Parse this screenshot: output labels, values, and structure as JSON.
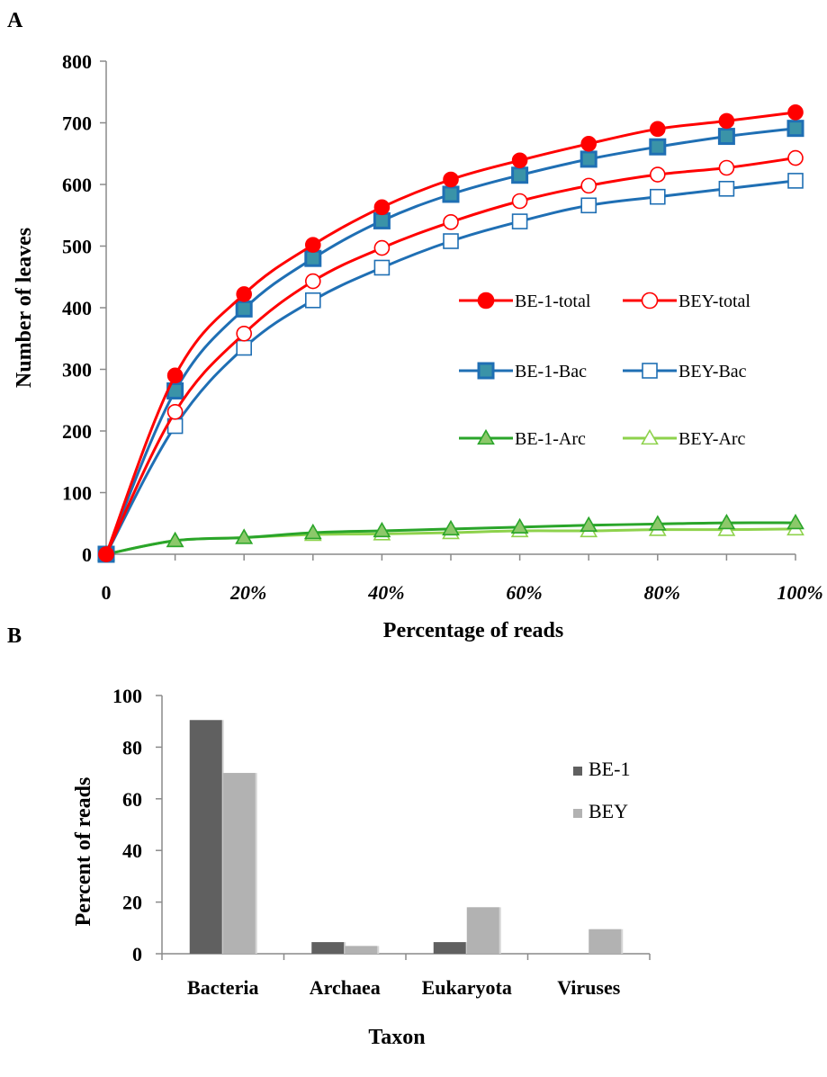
{
  "panels": {
    "a_letter": "A",
    "b_letter": "B"
  },
  "chart_data": [
    {
      "type": "line",
      "title": "",
      "xlabel": "Percentage of reads",
      "ylabel": "Number of leaves",
      "x": [
        0,
        10,
        20,
        30,
        40,
        50,
        60,
        70,
        80,
        90,
        100
      ],
      "xticks": [
        {
          "value": 0,
          "label": "0"
        },
        {
          "value": 20,
          "label": "20%"
        },
        {
          "value": 40,
          "label": "40%"
        },
        {
          "value": 60,
          "label": "60%"
        },
        {
          "value": 80,
          "label": "80%"
        },
        {
          "value": 100,
          "label": "100%"
        }
      ],
      "xlim": [
        0,
        100
      ],
      "ylim": [
        0,
        800
      ],
      "yticks": [
        0,
        100,
        200,
        300,
        400,
        500,
        600,
        700,
        800
      ],
      "grid": false,
      "legend_position": "right-middle",
      "series": [
        {
          "name": "BE-1-total",
          "color": "#ff0000",
          "marker": "circle",
          "filled": true,
          "values": [
            0,
            290,
            422,
            502,
            563,
            608,
            639,
            666,
            690,
            703,
            717
          ]
        },
        {
          "name": "BEY-total",
          "color": "#ff0000",
          "marker": "circle",
          "filled": false,
          "values": [
            0,
            231,
            358,
            443,
            497,
            539,
            573,
            598,
            616,
            627,
            643
          ]
        },
        {
          "name": "BE-1-Bac",
          "color": "#1f6fb4",
          "marker": "square",
          "filled": true,
          "fill": "#3a93a8",
          "values": [
            0,
            265,
            398,
            480,
            541,
            584,
            615,
            641,
            661,
            678,
            691
          ]
        },
        {
          "name": "BEY-Bac",
          "color": "#1f6fb4",
          "marker": "square",
          "filled": false,
          "values": [
            0,
            208,
            335,
            412,
            465,
            508,
            540,
            566,
            580,
            593,
            606
          ]
        },
        {
          "name": "BE-1-Arc",
          "color": "#2aa52a",
          "marker": "triangle",
          "filled": true,
          "fill": "#8cc86a",
          "values": [
            0,
            22,
            27,
            35,
            38,
            41,
            44,
            47,
            49,
            51,
            51
          ]
        },
        {
          "name": "BEY-Arc",
          "color": "#8ed24c",
          "marker": "triangle",
          "filled": false,
          "values": [
            0,
            22,
            27,
            32,
            33,
            35,
            38,
            38,
            40,
            40,
            41
          ]
        }
      ]
    },
    {
      "type": "bar",
      "title": "",
      "xlabel": "Taxon",
      "ylabel": "Percent of reads",
      "categories": [
        "Bacteria",
        "Archaea",
        "Eukaryota",
        "Viruses"
      ],
      "ylim": [
        0,
        100
      ],
      "yticks": [
        0,
        20,
        40,
        60,
        80,
        100
      ],
      "grid": false,
      "legend_position": "right-top",
      "series": [
        {
          "name": "BE-1",
          "color": "#606060",
          "values": [
            90.5,
            4.5,
            4.5,
            0
          ]
        },
        {
          "name": "BEY",
          "color": "#b2b2b2",
          "values": [
            70,
            3,
            18,
            9.5
          ]
        }
      ]
    }
  ]
}
